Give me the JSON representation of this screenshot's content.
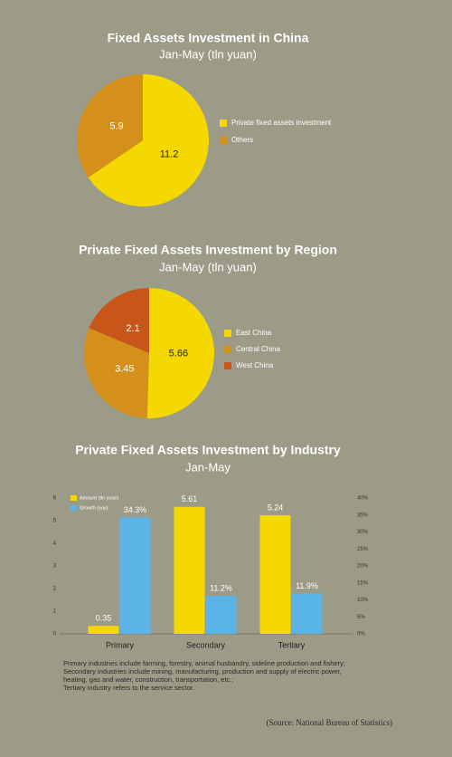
{
  "chart_data": [
    {
      "type": "pie",
      "title": "Fixed Assets Investment in China",
      "subtitle": "Jan-May (tln yuan)",
      "categories": [
        "Private fixed assets investment",
        "Others"
      ],
      "values": [
        11.2,
        5.9
      ],
      "colors": [
        "#f5d800",
        "#d4901a"
      ]
    },
    {
      "type": "pie",
      "title": "Private Fixed Assets Investment by Region",
      "subtitle": "Jan-May (tln yuan)",
      "categories": [
        "East China",
        "Central China",
        "West China"
      ],
      "values": [
        5.66,
        3.45,
        2.1
      ],
      "colors": [
        "#f5d800",
        "#d4901a",
        "#c8561a"
      ]
    },
    {
      "type": "bar",
      "title": "Private Fixed Assets Investment by Industry",
      "subtitle": "Jan-May",
      "categories": [
        "Primary",
        "Secondary",
        "Tertiary"
      ],
      "series": [
        {
          "name": "Amount (tln yuan)",
          "color": "#f5d800",
          "values": [
            0.35,
            5.61,
            5.24
          ]
        },
        {
          "name": "Growth (yoy)",
          "color": "#5ab4e8",
          "values": [
            34.3,
            11.2,
            11.9
          ],
          "value_labels": [
            "34.3%",
            "11.2%",
            "11.9%"
          ],
          "axis": "y2"
        }
      ],
      "ylim": [
        0,
        6
      ],
      "yticks": [
        0,
        1,
        2,
        3,
        4,
        5,
        6
      ],
      "y2lim": [
        0,
        40
      ],
      "y2ticks": [
        {
          "value": 0,
          "label": "0%"
        },
        {
          "value": 5,
          "label": "5%"
        },
        {
          "value": 10,
          "label": "10%"
        },
        {
          "value": 15,
          "label": "15%"
        },
        {
          "value": 20,
          "label": "20%"
        },
        {
          "value": 25,
          "label": "25%"
        },
        {
          "value": 30,
          "label": "30%"
        },
        {
          "value": 35,
          "label": "35%"
        },
        {
          "value": 40,
          "label": "40%"
        }
      ]
    }
  ],
  "notes": [
    "Primary industries include farming, forestry, animal husbandry, sideline production and fishery;",
    "Secondary industries include mining, manufacturing, production and supply of electric power, heating, gas and water, construction, transportation, etc.;",
    "Tertiary industry refers to the service sector."
  ],
  "source": "(Source: National Bureau of Statistics)"
}
